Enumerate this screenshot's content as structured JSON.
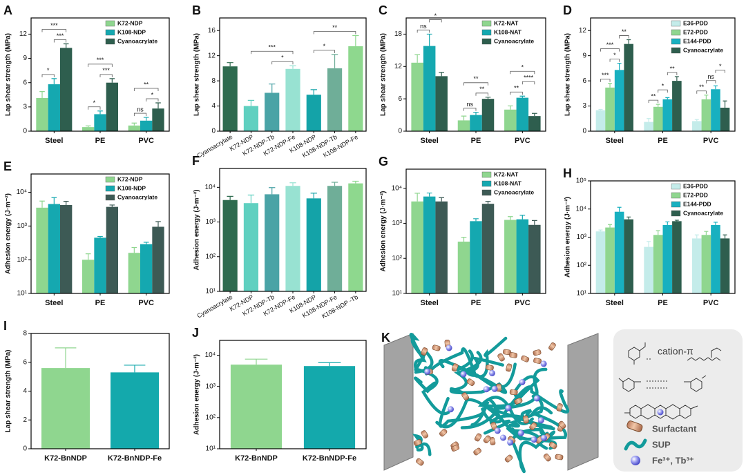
{
  "chart_data": [
    {
      "label": "A",
      "type": "bar",
      "ylabel": "Lap shear strength (MPa)",
      "categories": [
        "Steel",
        "PE",
        "PVC"
      ],
      "series": [
        {
          "name": "K72-NDP",
          "color": "#8fd68f",
          "values": [
            4.1,
            0.5,
            0.7
          ],
          "errors": [
            0.8,
            0.15,
            0.3
          ]
        },
        {
          "name": "K108-NDP",
          "color": "#15a8b0",
          "values": [
            5.8,
            2.1,
            1.3
          ],
          "errors": [
            0.7,
            0.4,
            0.4
          ]
        },
        {
          "name": "Cyanoacrylate",
          "color": "#2e5e4e",
          "values": [
            10.3,
            6.0,
            2.8
          ],
          "errors": [
            0.5,
            0.5,
            0.7
          ]
        }
      ],
      "ylim": [
        0,
        14
      ],
      "yticks": [
        0,
        3,
        6,
        9,
        12
      ],
      "legend": "upper right",
      "significance": [
        {
          "bars": [
            [
              0,
              0
            ],
            [
              0,
              1
            ]
          ],
          "label": "*"
        },
        {
          "bars": [
            [
              0,
              1
            ],
            [
              0,
              2
            ]
          ],
          "label": "***"
        },
        {
          "bars": [
            [
              0,
              0
            ],
            [
              0,
              2
            ]
          ],
          "label": "***"
        },
        {
          "bars": [
            [
              1,
              0
            ],
            [
              1,
              1
            ]
          ],
          "label": "*"
        },
        {
          "bars": [
            [
              1,
              1
            ],
            [
              1,
              2
            ]
          ],
          "label": "***"
        },
        {
          "bars": [
            [
              1,
              0
            ],
            [
              1,
              2
            ]
          ],
          "label": "***"
        },
        {
          "bars": [
            [
              2,
              0
            ],
            [
              2,
              1
            ]
          ],
          "label": "ns"
        },
        {
          "bars": [
            [
              2,
              1
            ],
            [
              2,
              2
            ]
          ],
          "label": "*"
        },
        {
          "bars": [
            [
              2,
              0
            ],
            [
              2,
              2
            ]
          ],
          "label": "**"
        }
      ]
    },
    {
      "label": "B",
      "type": "bar",
      "ylabel": "Lap shear strength (MPa)",
      "categories": [
        "Cyanoacrylate",
        "K72-NDP",
        "K72-NDP-Tb",
        "K72-NDP-Fe",
        "K108-NDP",
        "K108-NDP-Tb",
        "K108-NDP-Fe"
      ],
      "values": [
        10.3,
        4.0,
        6.1,
        9.9,
        5.8,
        10.0,
        13.5
      ],
      "errors": [
        0.6,
        0.9,
        1.4,
        0.5,
        0.8,
        2.2,
        1.7
      ],
      "colors": [
        "#2e6b4f",
        "#5fd0c0",
        "#4aa3a6",
        "#98e2d2",
        "#14a3a8",
        "#6fae98",
        "#8ed88e"
      ],
      "ylim": [
        0,
        18
      ],
      "yticks": [
        0,
        4,
        8,
        12,
        16
      ],
      "significance": [
        {
          "bars": [
            [
              2
            ],
            [
              3
            ]
          ],
          "label": "*"
        },
        {
          "bars": [
            [
              1
            ],
            [
              3
            ]
          ],
          "label": "***"
        },
        {
          "bars": [
            [
              4
            ],
            [
              5
            ]
          ],
          "label": "*"
        },
        {
          "bars": [
            [
              4
            ],
            [
              6
            ]
          ],
          "label": "**"
        }
      ]
    },
    {
      "label": "C",
      "type": "bar",
      "ylabel": "Lap shear strength (MPa)",
      "categories": [
        "Steel",
        "PE",
        "PVC"
      ],
      "series": [
        {
          "name": "K72-NAT",
          "color": "#8fd68f",
          "values": [
            12.7,
            2.0,
            4.0
          ],
          "errors": [
            1.5,
            0.8,
            0.7
          ]
        },
        {
          "name": "K108-NAT",
          "color": "#15a8b0",
          "values": [
            15.8,
            3.0,
            6.2
          ],
          "errors": [
            2.2,
            0.5,
            0.3
          ]
        },
        {
          "name": "Cyanoacrylate",
          "color": "#2e5e4e",
          "values": [
            10.2,
            6.0,
            2.8
          ],
          "errors": [
            0.7,
            0.3,
            0.5
          ]
        }
      ],
      "ylim": [
        0,
        21
      ],
      "yticks": [
        0,
        6,
        12,
        18
      ],
      "legend": "upper right",
      "significance": [
        {
          "bars": [
            [
              0,
              0
            ],
            [
              0,
              1
            ]
          ],
          "label": "ns"
        },
        {
          "bars": [
            [
              0,
              1
            ],
            [
              0,
              2
            ]
          ],
          "label": "*"
        },
        {
          "bars": [
            [
              1,
              0
            ],
            [
              1,
              1
            ]
          ],
          "label": "ns"
        },
        {
          "bars": [
            [
              1,
              1
            ],
            [
              1,
              2
            ]
          ],
          "label": "**"
        },
        {
          "bars": [
            [
              1,
              0
            ],
            [
              1,
              2
            ]
          ],
          "label": "**"
        },
        {
          "bars": [
            [
              2,
              0
            ],
            [
              2,
              1
            ]
          ],
          "label": "**"
        },
        {
          "bars": [
            [
              2,
              1
            ],
            [
              2,
              2
            ]
          ],
          "label": "****"
        },
        {
          "bars": [
            [
              2,
              0
            ],
            [
              2,
              2
            ]
          ],
          "label": "*"
        }
      ]
    },
    {
      "label": "D",
      "type": "bar",
      "ylabel": "Lap shear strength (MPa)",
      "categories": [
        "Steel",
        "PE",
        "PVC"
      ],
      "series": [
        {
          "name": "E36-PDD",
          "color": "#c4ecea",
          "values": [
            2.5,
            1.1,
            1.2
          ],
          "errors": [
            0.1,
            0.4,
            0.2
          ]
        },
        {
          "name": "E72-PDD",
          "color": "#8fd68f",
          "values": [
            5.2,
            2.9,
            3.8
          ],
          "errors": [
            0.5,
            0.3,
            0.5
          ]
        },
        {
          "name": "E144-PDD",
          "color": "#18b0c0",
          "values": [
            7.3,
            3.8,
            5.0
          ],
          "errors": [
            0.8,
            0.2,
            0.4
          ]
        },
        {
          "name": "Cyanoacrylate",
          "color": "#2e5e4e",
          "values": [
            10.4,
            6.0,
            2.8
          ],
          "errors": [
            0.5,
            0.5,
            0.8
          ]
        }
      ],
      "ylim": [
        0,
        13.5
      ],
      "yticks": [
        0,
        3,
        6,
        9,
        12
      ],
      "legend": "upper right",
      "significance": [
        {
          "bars": [
            [
              0,
              0
            ],
            [
              0,
              1
            ]
          ],
          "label": "***"
        },
        {
          "bars": [
            [
              0,
              1
            ],
            [
              0,
              2
            ]
          ],
          "label": "*"
        },
        {
          "bars": [
            [
              0,
              0
            ],
            [
              0,
              2
            ]
          ],
          "label": "***"
        },
        {
          "bars": [
            [
              0,
              2
            ],
            [
              0,
              3
            ]
          ],
          "label": "**"
        },
        {
          "bars": [
            [
              1,
              0
            ],
            [
              1,
              1
            ]
          ],
          "label": "**"
        },
        {
          "bars": [
            [
              1,
              1
            ],
            [
              1,
              2
            ]
          ],
          "label": "*"
        },
        {
          "bars": [
            [
              1,
              2
            ],
            [
              1,
              3
            ]
          ],
          "label": "**"
        },
        {
          "bars": [
            [
              2,
              0
            ],
            [
              2,
              1
            ]
          ],
          "label": "**"
        },
        {
          "bars": [
            [
              2,
              1
            ],
            [
              2,
              2
            ]
          ],
          "label": "ns"
        },
        {
          "bars": [
            [
              2,
              2
            ],
            [
              2,
              3
            ]
          ],
          "label": "*"
        }
      ]
    },
    {
      "label": "E",
      "type": "bar",
      "ylabel": "Adhesion energy (J·m⁻²)",
      "categories": [
        "Steel",
        "PE",
        "PVC"
      ],
      "yscale": "log",
      "series": [
        {
          "name": "K72-NDP",
          "color": "#8fd68f",
          "values": [
            3500,
            100,
            160
          ],
          "errors": [
            2000,
            50,
            70
          ]
        },
        {
          "name": "K108-NDP",
          "color": "#15a8b0",
          "values": [
            4500,
            450,
            290
          ],
          "errors": [
            2500,
            40,
            40
          ]
        },
        {
          "name": "Cyanoacrylate",
          "color": "#3d5a55",
          "values": [
            4200,
            3700,
            950
          ],
          "errors": [
            1200,
            500,
            400
          ]
        }
      ],
      "ylim": [
        10,
        35000
      ],
      "yticks": [
        {
          "value": 10,
          "label": "10¹"
        },
        {
          "value": 100,
          "label": "10²"
        },
        {
          "value": 1000,
          "label": "10³"
        },
        {
          "value": 10000,
          "label": "10⁴"
        }
      ],
      "legend": "upper right"
    },
    {
      "label": "F",
      "type": "bar",
      "ylabel": "Adhesion energy (J·m⁻²)",
      "yscale": "log",
      "categories": [
        "Cyanoacrylate",
        "K72-NDP",
        "K72-NDP-Tb",
        "K72-NDP-Fe",
        "K108-NDP",
        "K108-NDP-Fe",
        "K108-NDP -Tb"
      ],
      "values": [
        4300,
        3500,
        6300,
        11000,
        4800,
        11000,
        13000
      ],
      "errors": [
        1200,
        2500,
        3500,
        2500,
        2000,
        3000,
        2000
      ],
      "colors": [
        "#2e6b4f",
        "#5fd0c0",
        "#4aa3a6",
        "#98e2d2",
        "#14a3a8",
        "#6fae98",
        "#8ed88e"
      ],
      "ylim": [
        10,
        35000
      ],
      "yticks": [
        {
          "value": 10,
          "label": "10¹"
        },
        {
          "value": 100,
          "label": "10²"
        },
        {
          "value": 1000,
          "label": "10³"
        },
        {
          "value": 10000,
          "label": "10⁴"
        }
      ]
    },
    {
      "label": "G",
      "type": "bar",
      "ylabel": "Adhesion energy (J·m⁻²)",
      "categories": [
        "Steel",
        "PE",
        "PVC"
      ],
      "yscale": "log",
      "series": [
        {
          "name": "K72-NAT",
          "color": "#8fd68f",
          "values": [
            4200,
            300,
            1250
          ],
          "errors": [
            3000,
            100,
            300
          ]
        },
        {
          "name": "K108-NAT",
          "color": "#15a8b0",
          "values": [
            5800,
            1150,
            1300
          ],
          "errors": [
            1500,
            200,
            400
          ]
        },
        {
          "name": "Cyanoacrylate",
          "color": "#3d5a55",
          "values": [
            4200,
            3600,
            900
          ],
          "errors": [
            1200,
            600,
            300
          ]
        }
      ],
      "ylim": [
        10,
        35000
      ],
      "yticks": [
        {
          "value": 10,
          "label": "10¹"
        },
        {
          "value": 100,
          "label": "10²"
        },
        {
          "value": 1000,
          "label": "10³"
        },
        {
          "value": 10000,
          "label": "10⁴"
        }
      ],
      "legend": "upper right"
    },
    {
      "label": "H",
      "type": "bar",
      "ylabel": "Adhesion energy (J·m⁻²)",
      "categories": [
        "Steel",
        "PE",
        "PVC"
      ],
      "yscale": "log",
      "series": [
        {
          "name": "E36-PDD",
          "color": "#c4ecea",
          "values": [
            1600,
            450,
            900
          ],
          "errors": [
            200,
            250,
            300
          ]
        },
        {
          "name": "E72-PDD",
          "color": "#8fd68f",
          "values": [
            2200,
            1200,
            1200
          ],
          "errors": [
            600,
            500,
            400
          ]
        },
        {
          "name": "E144-PDD",
          "color": "#18b0c0",
          "values": [
            8000,
            2700,
            2700
          ],
          "errors": [
            3500,
            800,
            700
          ]
        },
        {
          "name": "Cyanoacrylate",
          "color": "#2e5e4e",
          "values": [
            4300,
            3700,
            900
          ],
          "errors": [
            900,
            300,
            300
          ]
        }
      ],
      "ylim": [
        10,
        100000
      ],
      "yticks": [
        {
          "value": 10,
          "label": "10¹"
        },
        {
          "value": 100,
          "label": "10²"
        },
        {
          "value": 1000,
          "label": "10³"
        },
        {
          "value": 10000,
          "label": "10⁴"
        },
        {
          "value": 100000,
          "label": "10⁵"
        }
      ],
      "legend": "upper right"
    },
    {
      "label": "I",
      "type": "bar",
      "ylabel": "Lap shear strength (MPa)",
      "categories": [
        "K72-BnNDP",
        "K72-BnNDP-Fe"
      ],
      "values": [
        5.6,
        5.3
      ],
      "errors": [
        1.4,
        0.5
      ],
      "colors": [
        "#8fd68f",
        "#14a9ac"
      ],
      "ylim": [
        0,
        8
      ],
      "yticks": [
        0,
        2,
        4,
        6,
        8
      ]
    },
    {
      "label": "J",
      "type": "bar",
      "ylabel": "Adhesion energy (J·m⁻²)",
      "categories": [
        "K72-BnNDP",
        "K72-BnNDP-Fe"
      ],
      "yscale": "log",
      "values": [
        5000,
        4500
      ],
      "errors": [
        2500,
        1300
      ],
      "colors": [
        "#8fd68f",
        "#14a9ac"
      ],
      "ylim": [
        10,
        30000
      ],
      "yticks": [
        {
          "value": 10,
          "label": "10¹"
        },
        {
          "value": 100,
          "label": "10²"
        },
        {
          "value": 1000,
          "label": "10³"
        },
        {
          "value": 10000,
          "label": "10⁴"
        }
      ]
    }
  ],
  "diagram": {
    "label": "K",
    "annotation": "cation-π",
    "legend": [
      "Surfactant",
      "SUP",
      "Fe³⁺, Tb³⁺"
    ]
  }
}
